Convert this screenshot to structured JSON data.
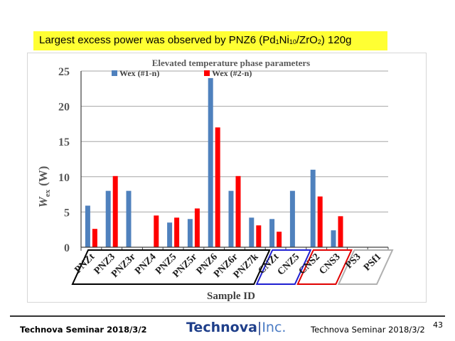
{
  "banner": {
    "parts": [
      {
        "text": "Largest excess power was observed by PNZ6 (Pd",
        "sub": false
      },
      {
        "text": "1",
        "sub": true
      },
      {
        "text": "Ni",
        "sub": false
      },
      {
        "text": "10",
        "sub": true
      },
      {
        "text": "/ZrO",
        "sub": false
      },
      {
        "text": "2",
        "sub": true
      },
      {
        "text": ") 120g",
        "sub": false
      }
    ]
  },
  "chart_data": {
    "type": "bar",
    "title": "Elevated temperature phase parameters",
    "xlabel": "Sample ID",
    "ylabel": "W",
    "ylabel_sub": "ex",
    "ylabel_unit": "(W)",
    "ylim": [
      0,
      25
    ],
    "yticks": [
      0,
      5,
      10,
      15,
      20,
      25
    ],
    "grid": true,
    "legend_position": "top-left",
    "categories": [
      "PNZt",
      "PNZ3",
      "PNZ3r",
      "PNZ4",
      "PNZ5",
      "PNZ5r",
      "PNZ6",
      "PNZ6r",
      "PNZ7k",
      "CNZt",
      "CNZ5",
      "CNS2",
      "CNS3",
      "PS3",
      "PSf1"
    ],
    "series": [
      {
        "name": "Wex (#1-n)",
        "color": "#4f81bd",
        "values": [
          5.9,
          8.0,
          8.0,
          null,
          3.5,
          4.0,
          24.0,
          8.0,
          4.2,
          4.0,
          8.0,
          11.0,
          2.4,
          null,
          null
        ]
      },
      {
        "name": "Wex (#2-n)",
        "color": "#ff0000",
        "values": [
          2.6,
          10.1,
          null,
          4.5,
          4.2,
          5.5,
          17.0,
          10.1,
          3.1,
          2.2,
          null,
          7.2,
          4.4,
          null,
          null
        ]
      }
    ],
    "groups": [
      {
        "color": "#000000",
        "start": 0,
        "end": 8
      },
      {
        "color": "#1f1fd0",
        "start": 9,
        "end": 10
      },
      {
        "color": "#e00000",
        "start": 11,
        "end": 12
      },
      {
        "color": "#b0b0b0",
        "start": 13,
        "end": 14
      }
    ]
  },
  "footer": {
    "left": "Technova Seminar 2018/3/2",
    "right": "Technova Seminar 2018/3/2",
    "page_number": "43",
    "logo_main": "Technova",
    "logo_sep": "|",
    "logo_suffix": "Inc."
  }
}
